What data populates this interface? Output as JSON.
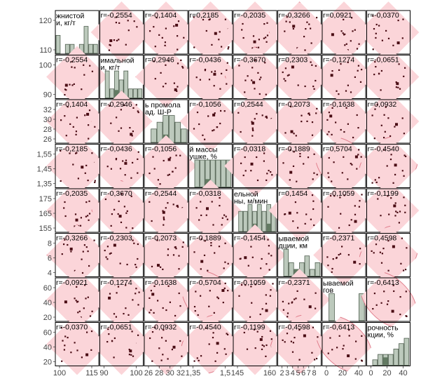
{
  "chart_data": {
    "type": "scatter",
    "variables": [
      "жнистой... кг/г",
      "имальной... и, кг/г",
      "...ь промола... ад. Ш-Р",
      "...й массы... ушке, %",
      "...ельной... ны, м/мин",
      "...ываемой... дции, км",
      "...ываемой... гов",
      "...рочность... кции, %"
    ],
    "diagonal_titles": [
      [
        "жнистой",
        "и, кг/т"
      ],
      [
        "имальной",
        "и, кг/т"
      ],
      [
        "ь промола",
        "ад. Ш-Р"
      ],
      [
        "й массы",
        "ушке, %"
      ],
      [
        "ельной",
        "ны, м/мин"
      ],
      [
        "ываемой",
        "дции, км"
      ],
      [
        "ываемой",
        "гов"
      ],
      [
        "рочность",
        "кции, %"
      ]
    ],
    "left_tick_labels": [
      [
        "120",
        "110"
      ],
      [
        "100",
        "90"
      ],
      [
        "32",
        "30",
        "28",
        "26"
      ],
      [
        "1,55",
        "1,45",
        "1,35"
      ],
      [
        "175",
        "165",
        "155"
      ],
      [
        "8",
        "6",
        "4"
      ],
      [
        "60",
        "40",
        "20"
      ],
      [
        "60",
        "40",
        "20"
      ]
    ],
    "bottom_tick_labels": [
      [
        "100",
        "115"
      ],
      [
        "90",
        "100"
      ],
      [
        "26",
        "28",
        "30",
        "32"
      ],
      [
        "1,35",
        "1,5"
      ],
      [
        "145",
        "160"
      ],
      [
        "2",
        "3",
        "4",
        "5",
        "6",
        "7",
        "8"
      ],
      [
        "0",
        "20",
        "40"
      ],
      [
        "0",
        "20",
        "40"
      ]
    ],
    "correlations": [
      [
        null,
        "0,2554",
        "0,1404",
        "0,2185",
        "0,2035",
        "0,3266",
        "0,0921",
        "0,0370"
      ],
      [
        "0,2554",
        null,
        "0,2946",
        "0,0436",
        "0,3670",
        "0,2303",
        "0,1274",
        "0,0651"
      ],
      [
        "0,1404",
        "0,2946",
        null,
        "0,1056",
        "0,2544",
        "0,2073",
        "0,1638",
        "0,0932"
      ],
      [
        "0,2185",
        "0,0436",
        "0,1056",
        null,
        "0,0318",
        "0,1889",
        "0,5704",
        "0,4540"
      ],
      [
        "0,2035",
        "0,3670",
        "0,2544",
        "0,0318",
        null,
        "0,1454",
        "0,1059",
        "0,1199"
      ],
      [
        "0,3266",
        "0,2303",
        "0,2073",
        "0,1889",
        "0,1454",
        null,
        "0,2371",
        "0,4598"
      ],
      [
        "0,0921",
        "0,1274",
        "0,1638",
        "0,5704",
        "0,1059",
        "0,2371",
        null,
        "0,6413"
      ],
      [
        "0,0370",
        "0,0651",
        "0,0932",
        "0,4540",
        "0,1199",
        "0,4598",
        "0,6413",
        null
      ]
    ],
    "histograms": [
      [
        2,
        0,
        1,
        1,
        0,
        1,
        3,
        1,
        1
      ],
      [
        0,
        3,
        1,
        3,
        2,
        3,
        1,
        1,
        1
      ],
      [
        0,
        2,
        3,
        4,
        4,
        3,
        2
      ],
      [
        0,
        4,
        4,
        4,
        4,
        4,
        4,
        4
      ],
      [
        0,
        3,
        3,
        4,
        3,
        4,
        3,
        4,
        3
      ],
      [
        0,
        4,
        2,
        1,
        2,
        3,
        1,
        2
      ],
      [
        0,
        3,
        0,
        0,
        0,
        0,
        3
      ],
      [
        0,
        1,
        2,
        2,
        2,
        3,
        4,
        5
      ]
    ],
    "colors": {
      "ellipse_fill": "#fbd5d9",
      "ellipse_stroke": "#e07e8c",
      "point": "#4a0c14",
      "hist_fill": "#bcc9bc",
      "hist_selected": "#627a62",
      "frame": "#000000",
      "text": "#000000",
      "tick_text": "#444444"
    }
  }
}
